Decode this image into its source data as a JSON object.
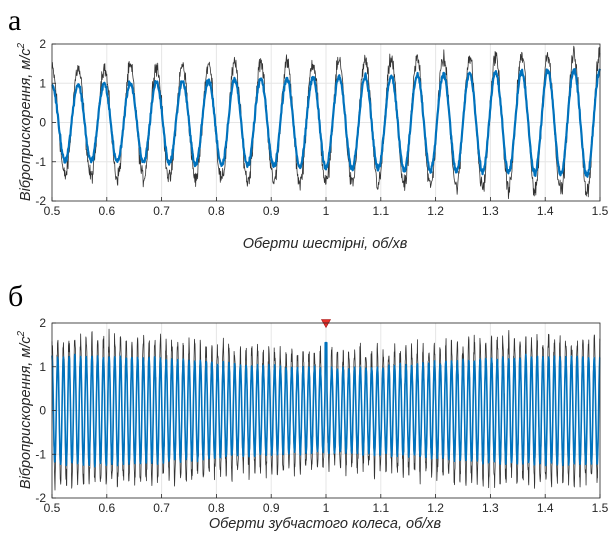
{
  "chart_data": [
    {
      "type": "line",
      "panel_label": "а",
      "xlabel": "Оберти шестірні, об/хв",
      "ylabel": "Віброприскорення, м/с",
      "ylabel_superscript": "2",
      "xlim": [
        0.5,
        1.5
      ],
      "ylim": [
        -2,
        2
      ],
      "xticks": [
        "0.5",
        "0.6",
        "0.7",
        "0.8",
        "0.9",
        "1",
        "1.1",
        "1.2",
        "1.3",
        "1.4",
        "1.5"
      ],
      "yticks": [
        "-2",
        "-1",
        "0",
        "1",
        "2"
      ],
      "grid": true,
      "cycles": 21,
      "series": [
        {
          "color": "#333333",
          "role": "raw",
          "amplitude_start": 1.35,
          "amplitude_end": 1.75,
          "noise": 0.22
        },
        {
          "color": "#0072BD",
          "role": "filtered",
          "amplitude_start": 0.95,
          "amplitude_end": 1.35,
          "noise": 0.07
        }
      ]
    },
    {
      "type": "line",
      "panel_label": "б",
      "xlabel": "Оберти зубчастого колеса, об/хв",
      "ylabel": "Віброприскорення, м/с",
      "ylabel_superscript": "2",
      "xlim": [
        0.5,
        1.5
      ],
      "ylim": [
        -2,
        2
      ],
      "xticks": [
        "0.5",
        "0.6",
        "0.7",
        "0.8",
        "0.9",
        "1",
        "1.1",
        "1.2",
        "1.3",
        "1.4",
        "1.5"
      ],
      "yticks": [
        "-2",
        "-1",
        "0",
        "1",
        "2"
      ],
      "grid": true,
      "cycles": 96,
      "series": [
        {
          "color": "#333333",
          "role": "raw",
          "amplitude": 1.45,
          "noise": 0.25
        },
        {
          "color": "#0072BD",
          "role": "filtered",
          "amplitude": 1.1,
          "noise": 0.05
        }
      ],
      "marker": {
        "x": 1.0,
        "y": 2.0,
        "color": "#e8302a",
        "shape": "triangle-down"
      },
      "spike": {
        "x": 1.0,
        "y": 1.55
      }
    }
  ]
}
